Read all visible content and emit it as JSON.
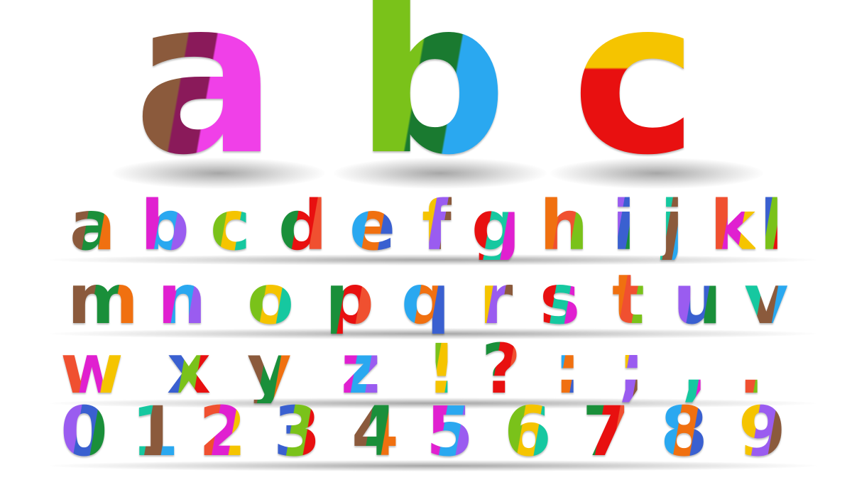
{
  "big_letters": [
    "a",
    "b",
    "c"
  ],
  "rows": [
    [
      "a",
      "b",
      "c",
      "d",
      "e",
      "f",
      "g",
      "h",
      "i",
      "j",
      "k",
      "l"
    ],
    [
      "m",
      "n",
      "o",
      "p",
      "q",
      "r",
      "s",
      "t",
      "u",
      "v"
    ],
    [
      "w",
      "x",
      "y",
      "z",
      "!",
      "?",
      ":",
      ";",
      ",",
      "."
    ],
    [
      "0",
      "1",
      "2",
      "3",
      "4",
      "5",
      "6",
      "7",
      "8",
      "9"
    ]
  ],
  "palette": [
    "#8b5a3c",
    "#e020d0",
    "#7ac21a",
    "#1a8f3a",
    "#2aa8f0",
    "#f5c400",
    "#e81010",
    "#f07010",
    "#9a5cf0",
    "#16c8a0",
    "#f05030",
    "#3a60d0"
  ]
}
